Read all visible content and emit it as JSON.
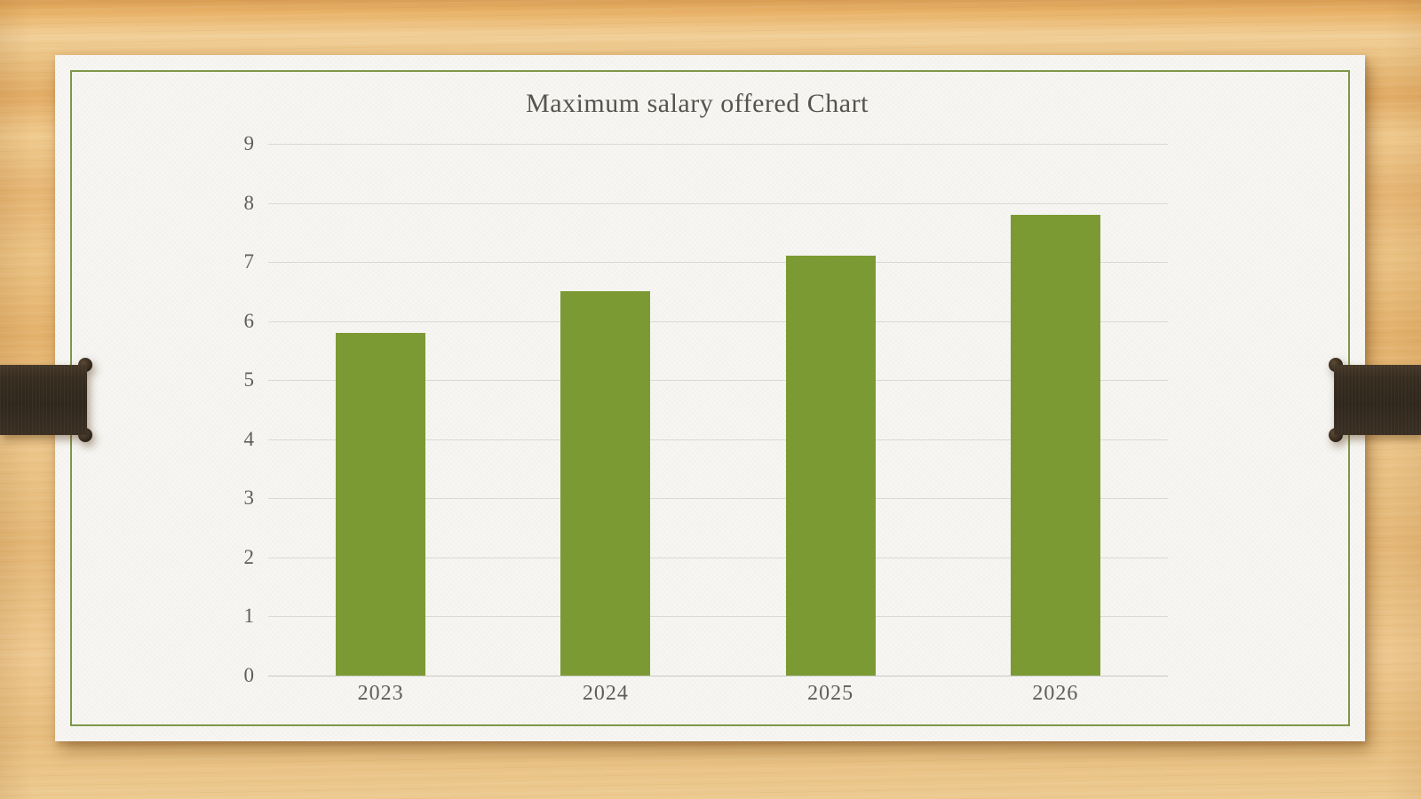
{
  "slide": {
    "title": "Maximum salary offered Chart"
  },
  "chart_data": {
    "type": "bar",
    "title": "Maximum salary offered Chart",
    "categories": [
      "2023",
      "2024",
      "2025",
      "2026"
    ],
    "values": [
      5.8,
      6.5,
      7.1,
      7.8
    ],
    "xlabel": "",
    "ylabel": "",
    "ylim": [
      0,
      9
    ],
    "ytick_step": 1,
    "yticks": [
      0,
      1,
      2,
      3,
      4,
      5,
      6,
      7,
      8,
      9
    ],
    "grid": true,
    "legend": false,
    "bar_color": "#7c9a33",
    "gridline_color": "#dad9d5",
    "baseline_color": "#c9c8c3",
    "label_color": "#5f5e59",
    "title_color": "#55544e"
  },
  "theme": {
    "wood_base": "#e8bd7b",
    "card_bg": "#f7f6f3",
    "frame_color": "#7e9748",
    "strap_color": "#372d22"
  }
}
